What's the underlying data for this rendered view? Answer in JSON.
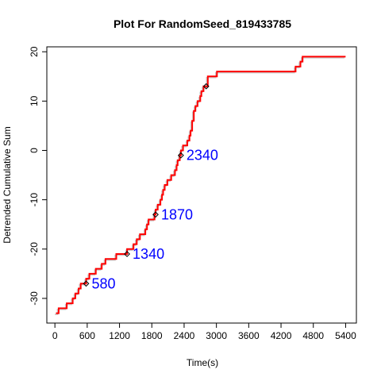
{
  "chart_data": {
    "type": "line",
    "title": "Plot For RandomSeed_819433785",
    "xlabel": "Time(s)",
    "ylabel": "Detrended Cumulative Sum",
    "xlim": [
      -150,
      5600
    ],
    "ylim": [
      -35,
      21
    ],
    "x_ticks": [
      0,
      600,
      1200,
      1800,
      2400,
      3000,
      3600,
      4200,
      4800,
      5400
    ],
    "y_ticks": [
      -30,
      -20,
      -10,
      0,
      10,
      20
    ],
    "grid": false,
    "colors": {
      "main_line": "#ff0000",
      "shadow_line": "#c8c8c8",
      "annotations": "#0000ff",
      "markers": "#000000"
    },
    "series": [
      {
        "type": "step",
        "points": [
          [
            20,
            -33
          ],
          [
            70,
            -33
          ],
          [
            70,
            -32
          ],
          [
            220,
            -32
          ],
          [
            220,
            -31
          ],
          [
            330,
            -31
          ],
          [
            330,
            -30
          ],
          [
            380,
            -30
          ],
          [
            380,
            -29
          ],
          [
            440,
            -29
          ],
          [
            440,
            -28
          ],
          [
            480,
            -28
          ],
          [
            480,
            -27
          ],
          [
            580,
            -27
          ],
          [
            580,
            -26
          ],
          [
            640,
            -26
          ],
          [
            640,
            -25
          ],
          [
            760,
            -25
          ],
          [
            760,
            -24
          ],
          [
            870,
            -24
          ],
          [
            870,
            -23
          ],
          [
            940,
            -23
          ],
          [
            940,
            -22
          ],
          [
            1140,
            -22
          ],
          [
            1140,
            -21
          ],
          [
            1340,
            -21
          ],
          [
            1340,
            -20
          ],
          [
            1460,
            -20
          ],
          [
            1460,
            -19
          ],
          [
            1520,
            -19
          ],
          [
            1520,
            -18
          ],
          [
            1580,
            -18
          ],
          [
            1580,
            -17
          ],
          [
            1680,
            -17
          ],
          [
            1680,
            -16
          ],
          [
            1710,
            -16
          ],
          [
            1710,
            -15
          ],
          [
            1740,
            -15
          ],
          [
            1740,
            -14
          ],
          [
            1850,
            -14
          ],
          [
            1850,
            -13
          ],
          [
            1870,
            -13
          ],
          [
            1870,
            -12
          ],
          [
            1910,
            -12
          ],
          [
            1910,
            -11
          ],
          [
            1960,
            -11
          ],
          [
            1960,
            -10
          ],
          [
            1990,
            -10
          ],
          [
            1990,
            -9
          ],
          [
            2010,
            -9
          ],
          [
            2010,
            -8
          ],
          [
            2040,
            -8
          ],
          [
            2040,
            -7
          ],
          [
            2090,
            -7
          ],
          [
            2090,
            -6
          ],
          [
            2160,
            -6
          ],
          [
            2160,
            -5
          ],
          [
            2230,
            -5
          ],
          [
            2230,
            -4
          ],
          [
            2260,
            -4
          ],
          [
            2260,
            -3
          ],
          [
            2280,
            -3
          ],
          [
            2280,
            -2
          ],
          [
            2320,
            -2
          ],
          [
            2320,
            -1
          ],
          [
            2340,
            -1
          ],
          [
            2340,
            0
          ],
          [
            2380,
            0
          ],
          [
            2380,
            1
          ],
          [
            2460,
            1
          ],
          [
            2460,
            2
          ],
          [
            2500,
            2
          ],
          [
            2500,
            3
          ],
          [
            2520,
            3
          ],
          [
            2520,
            4
          ],
          [
            2550,
            4
          ],
          [
            2550,
            6
          ],
          [
            2580,
            6
          ],
          [
            2580,
            8
          ],
          [
            2610,
            8
          ],
          [
            2610,
            9
          ],
          [
            2650,
            9
          ],
          [
            2650,
            10
          ],
          [
            2700,
            10
          ],
          [
            2700,
            11
          ],
          [
            2720,
            11
          ],
          [
            2720,
            12
          ],
          [
            2760,
            12
          ],
          [
            2760,
            13
          ],
          [
            2840,
            13
          ],
          [
            2840,
            15
          ],
          [
            3010,
            15
          ],
          [
            3010,
            16
          ],
          [
            4470,
            16
          ],
          [
            4470,
            17
          ],
          [
            4560,
            17
          ],
          [
            4560,
            18
          ],
          [
            4600,
            18
          ],
          [
            4600,
            19
          ],
          [
            5400,
            19
          ]
        ]
      }
    ],
    "markers": [
      {
        "x": 580,
        "y": -27
      },
      {
        "x": 1340,
        "y": -21
      },
      {
        "x": 1870,
        "y": -13
      },
      {
        "x": 2340,
        "y": -1
      },
      {
        "x": 2810,
        "y": 13
      }
    ],
    "annotations": [
      {
        "text": "580",
        "x": 580,
        "y": -27
      },
      {
        "text": "1340",
        "x": 1340,
        "y": -21
      },
      {
        "text": "1870",
        "x": 1870,
        "y": -13
      },
      {
        "text": "2340",
        "x": 2340,
        "y": -1
      }
    ]
  }
}
